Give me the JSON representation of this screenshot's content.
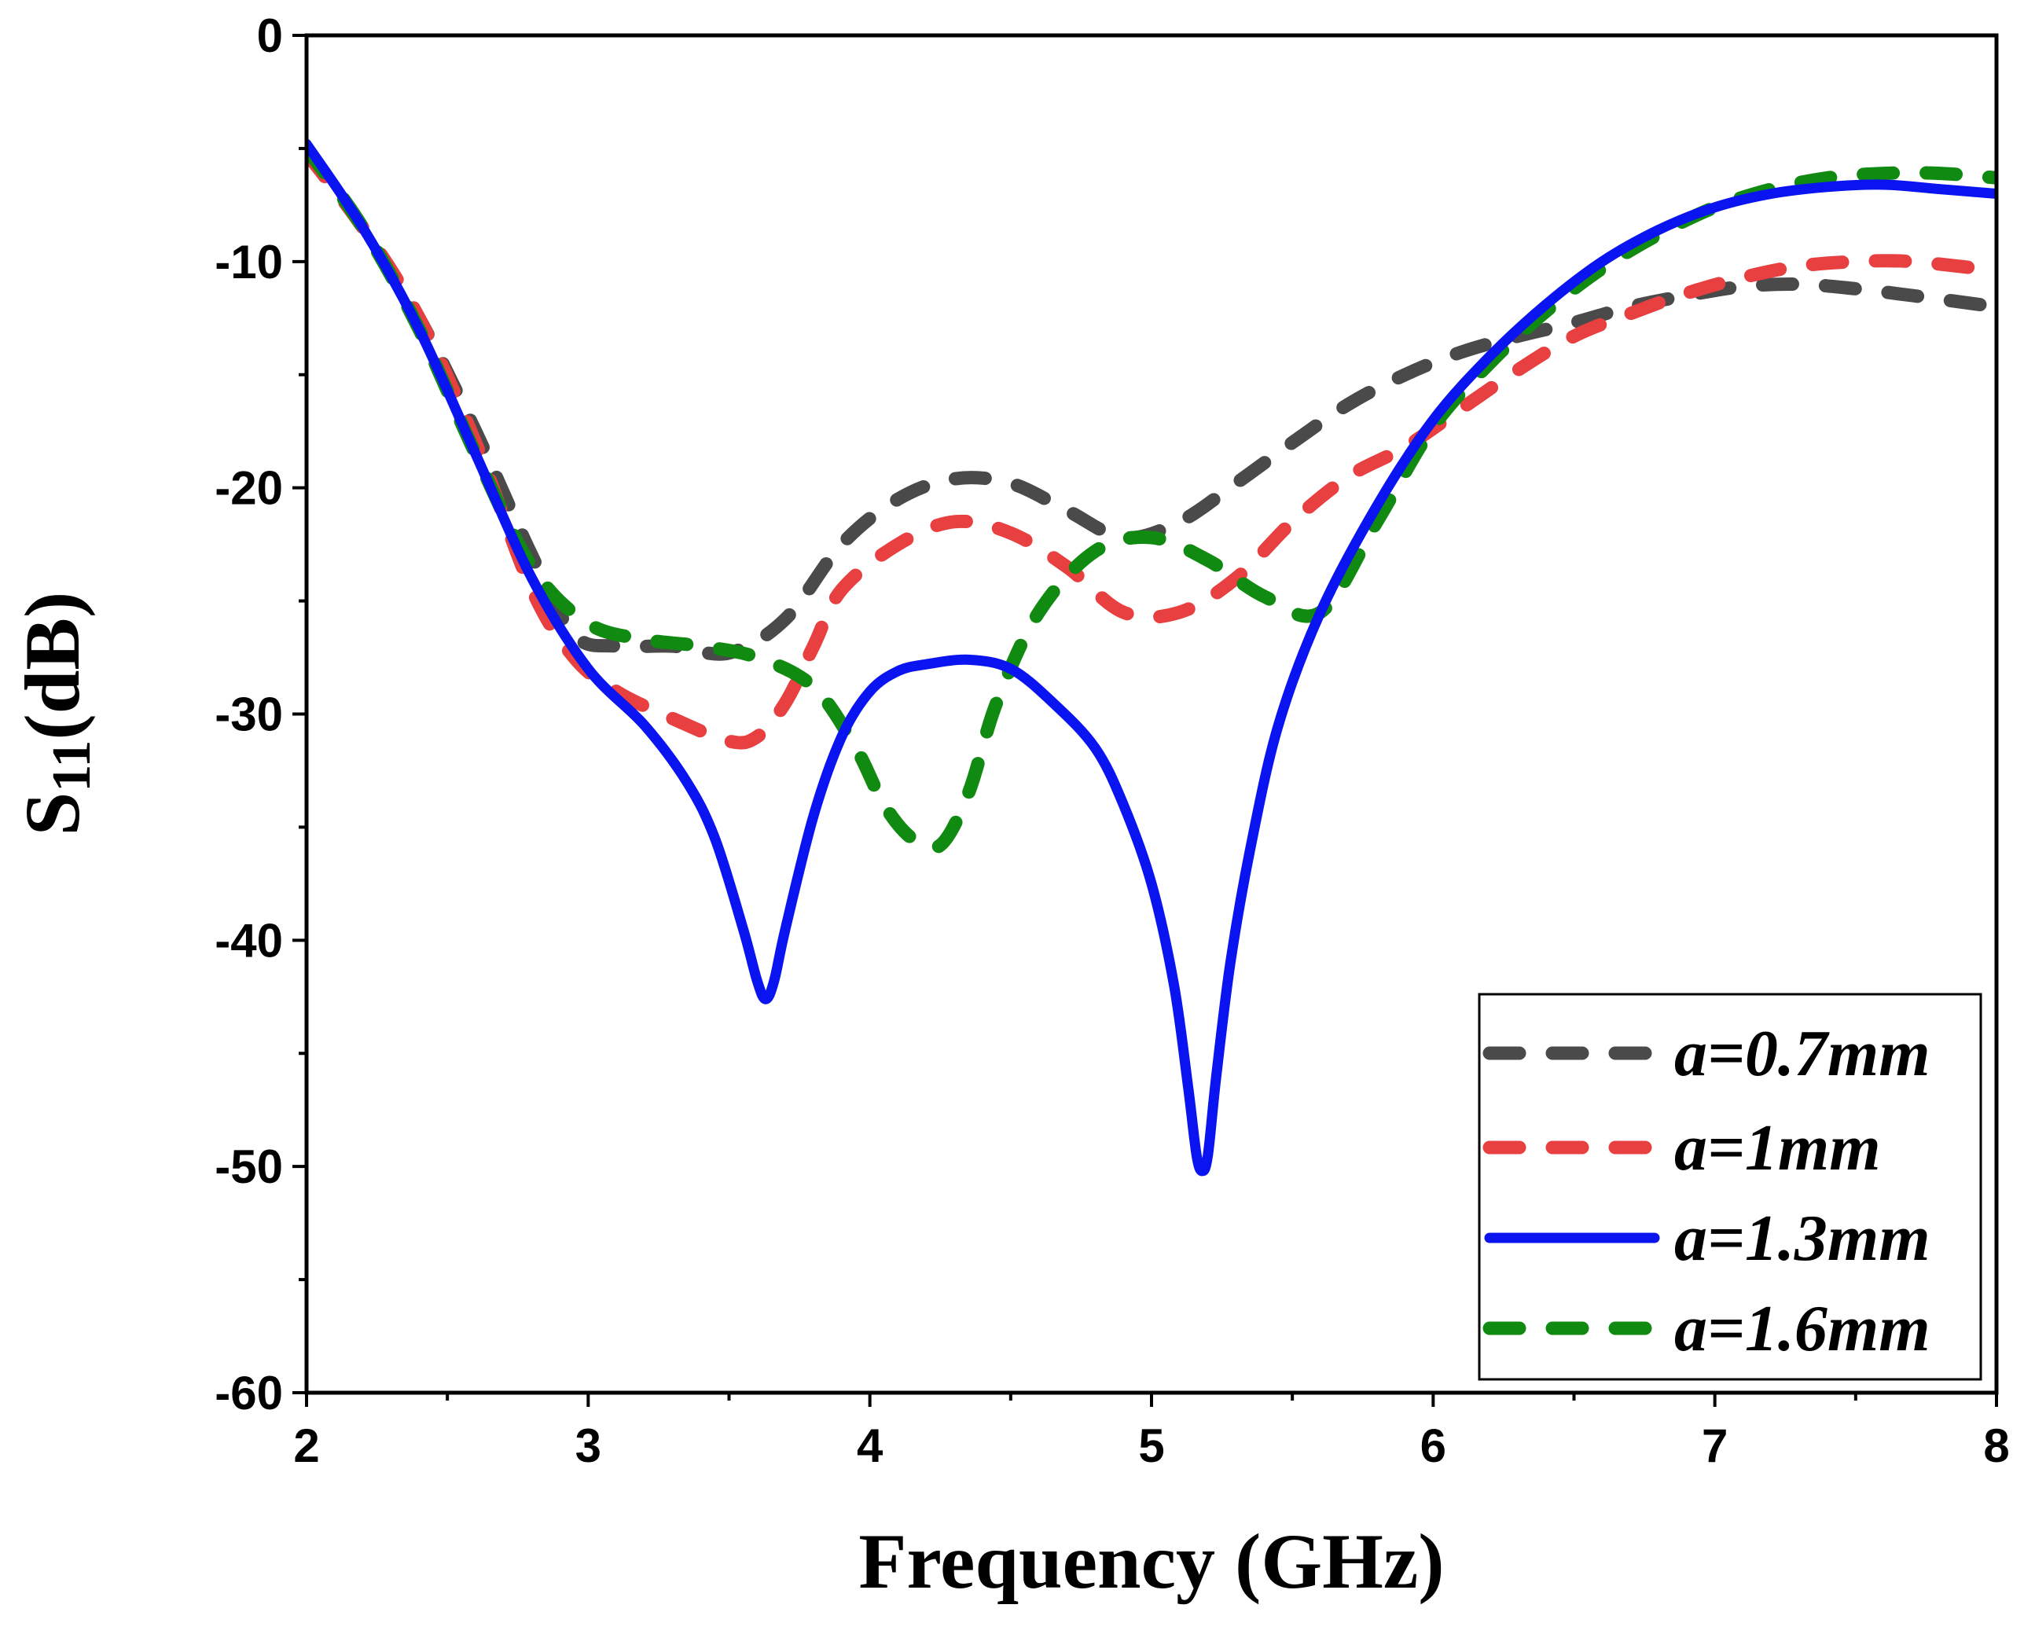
{
  "chart_data": {
    "type": "line",
    "title": "",
    "xlabel": "Frequency (GHz)",
    "ylabel": "S11(dB)",
    "ylabel_main": "S",
    "ylabel_sub": "11",
    "ylabel_tail": "(dB)",
    "xlim": [
      2,
      8
    ],
    "ylim": [
      -60,
      0
    ],
    "xticks": [
      "2",
      "3",
      "4",
      "5",
      "6",
      "7",
      "8"
    ],
    "yticks": [
      "0",
      "-10",
      "-20",
      "-30",
      "-40",
      "-50",
      "-60"
    ],
    "grid": false,
    "legend_position": "bottom-right",
    "series": [
      {
        "name": "a=0.7mm",
        "color": "#4a4a4a",
        "style": "dashed",
        "x": [
          2.0,
          2.2,
          2.4,
          2.6,
          2.8,
          2.95,
          3.1,
          3.3,
          3.5,
          3.7,
          3.9,
          4.1,
          4.3,
          4.5,
          4.7,
          4.9,
          5.1,
          5.3,
          5.5,
          5.7,
          5.9,
          6.1,
          6.3,
          6.5,
          6.7,
          6.9,
          7.1,
          7.3,
          7.5,
          7.7,
          8.0
        ],
        "y": [
          -5.2,
          -8.5,
          -12.5,
          -17.5,
          -23.0,
          -26.5,
          -27.0,
          -27.0,
          -27.3,
          -25.8,
          -22.5,
          -20.5,
          -19.6,
          -19.8,
          -21.0,
          -22.2,
          -21.5,
          -19.8,
          -18.0,
          -16.3,
          -15.0,
          -14.0,
          -13.3,
          -12.7,
          -12.0,
          -11.5,
          -11.1,
          -11.0,
          -11.2,
          -11.5,
          -12.0
        ]
      },
      {
        "name": "a=1mm",
        "color": "#e84040",
        "style": "dashed",
        "x": [
          2.0,
          2.2,
          2.4,
          2.6,
          2.8,
          2.95,
          3.1,
          3.3,
          3.5,
          3.6,
          3.7,
          3.8,
          3.9,
          4.1,
          4.3,
          4.5,
          4.7,
          4.9,
          5.1,
          5.3,
          5.5,
          5.7,
          5.9,
          6.1,
          6.3,
          6.5,
          6.7,
          6.9,
          7.1,
          7.3,
          7.5,
          7.7,
          8.0
        ],
        "y": [
          -5.2,
          -8.5,
          -12.5,
          -18.0,
          -24.5,
          -27.5,
          -29.0,
          -30.2,
          -31.2,
          -31.0,
          -29.5,
          -27.0,
          -24.5,
          -22.5,
          -21.5,
          -22.0,
          -23.5,
          -25.5,
          -25.5,
          -24.0,
          -21.5,
          -19.5,
          -18.2,
          -16.5,
          -14.8,
          -13.3,
          -12.3,
          -11.4,
          -10.7,
          -10.2,
          -10.0,
          -10.0,
          -10.4
        ]
      },
      {
        "name": "a=1.3mm",
        "color": "#0a14f0",
        "style": "solid",
        "x": [
          2.0,
          2.2,
          2.4,
          2.6,
          2.8,
          3.0,
          3.2,
          3.35,
          3.45,
          3.55,
          3.6,
          3.63,
          3.66,
          3.7,
          3.8,
          3.9,
          4.0,
          4.1,
          4.2,
          4.35,
          4.5,
          4.65,
          4.8,
          4.9,
          5.0,
          5.08,
          5.13,
          5.16,
          5.18,
          5.2,
          5.23,
          5.28,
          5.35,
          5.45,
          5.6,
          5.8,
          6.0,
          6.2,
          6.4,
          6.6,
          6.8,
          7.0,
          7.2,
          7.4,
          7.6,
          7.8,
          8.0
        ],
        "y": [
          -4.8,
          -8.5,
          -13.0,
          -18.5,
          -24.0,
          -28.0,
          -30.5,
          -33.0,
          -35.5,
          -39.5,
          -41.8,
          -42.6,
          -41.8,
          -39.5,
          -34.5,
          -31.0,
          -29.0,
          -28.1,
          -27.8,
          -27.6,
          -28.0,
          -29.5,
          -31.5,
          -34.0,
          -37.5,
          -42.0,
          -46.5,
          -49.5,
          -50.2,
          -49.5,
          -46.0,
          -41.0,
          -36.0,
          -30.5,
          -25.5,
          -20.8,
          -17.0,
          -14.2,
          -11.9,
          -10.0,
          -8.6,
          -7.6,
          -7.0,
          -6.7,
          -6.6,
          -6.8,
          -7.0
        ]
      },
      {
        "name": "a=1.6mm",
        "color": "#108a10",
        "style": "dashed",
        "x": [
          2.0,
          2.2,
          2.4,
          2.6,
          2.8,
          3.0,
          3.2,
          3.4,
          3.6,
          3.8,
          3.95,
          4.05,
          4.15,
          4.25,
          4.35,
          4.45,
          4.6,
          4.8,
          5.0,
          5.2,
          5.4,
          5.6,
          5.8,
          6.0,
          6.2,
          6.4,
          6.6,
          6.8,
          7.0,
          7.2,
          7.4,
          7.6,
          7.8,
          8.0
        ],
        "y": [
          -5.0,
          -8.5,
          -13.0,
          -18.5,
          -23.5,
          -26.0,
          -26.7,
          -27.0,
          -27.5,
          -28.8,
          -31.5,
          -34.0,
          -35.5,
          -35.8,
          -33.5,
          -29.5,
          -25.5,
          -22.8,
          -22.2,
          -23.2,
          -24.8,
          -25.5,
          -21.5,
          -17.3,
          -14.5,
          -12.2,
          -10.3,
          -8.8,
          -7.6,
          -6.8,
          -6.3,
          -6.1,
          -6.1,
          -6.3
        ]
      }
    ]
  }
}
